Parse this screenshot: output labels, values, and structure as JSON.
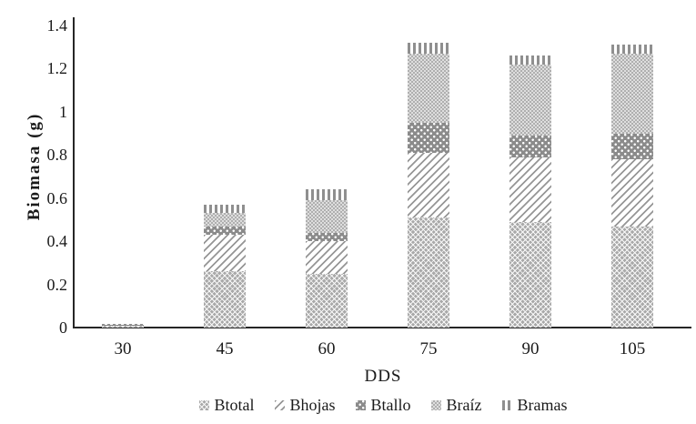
{
  "chart_data": {
    "type": "bar",
    "stacked": true,
    "title": "",
    "xlabel": "DDS",
    "ylabel": "Biomasa (g)",
    "categories": [
      "30",
      "45",
      "60",
      "75",
      "90",
      "105"
    ],
    "series": [
      {
        "name": "Btotal",
        "pattern": "diamond-crosshatch",
        "values": [
          0.01,
          0.26,
          0.25,
          0.51,
          0.49,
          0.47
        ]
      },
      {
        "name": "Bhojas",
        "pattern": "diagonal-stripes",
        "values": [
          0.002,
          0.17,
          0.15,
          0.3,
          0.3,
          0.31
        ]
      },
      {
        "name": "Btallo",
        "pattern": "white-dots-on-gray",
        "values": [
          0.001,
          0.04,
          0.04,
          0.14,
          0.1,
          0.12
        ]
      },
      {
        "name": "Braíz",
        "pattern": "fine-checker",
        "values": [
          0.002,
          0.06,
          0.15,
          0.32,
          0.33,
          0.37
        ]
      },
      {
        "name": "Bramas",
        "pattern": "vertical-stripes",
        "values": [
          0.001,
          0.04,
          0.05,
          0.05,
          0.04,
          0.04
        ]
      }
    ],
    "stack_totals": [
      0.016,
      0.57,
      0.64,
      1.32,
      1.26,
      1.31
    ],
    "ylim": [
      0,
      1.4
    ],
    "yticks": [
      "0",
      "0.2",
      "0.4",
      "0.6",
      "0.8",
      "1",
      "1.2",
      "1.4"
    ],
    "ytick_values": [
      0,
      0.2,
      0.4,
      0.6,
      0.8,
      1,
      1.2,
      1.4
    ],
    "grid": false,
    "legend_position": "bottom",
    "colors": {
      "axis": "#262626",
      "text": "#1a1a1a",
      "pattern_dark_gray": "#8b8b8b",
      "pattern_mid_gray": "#a9a9a9",
      "pattern_light_gray": "#dedede",
      "background": "#ffffff"
    }
  }
}
